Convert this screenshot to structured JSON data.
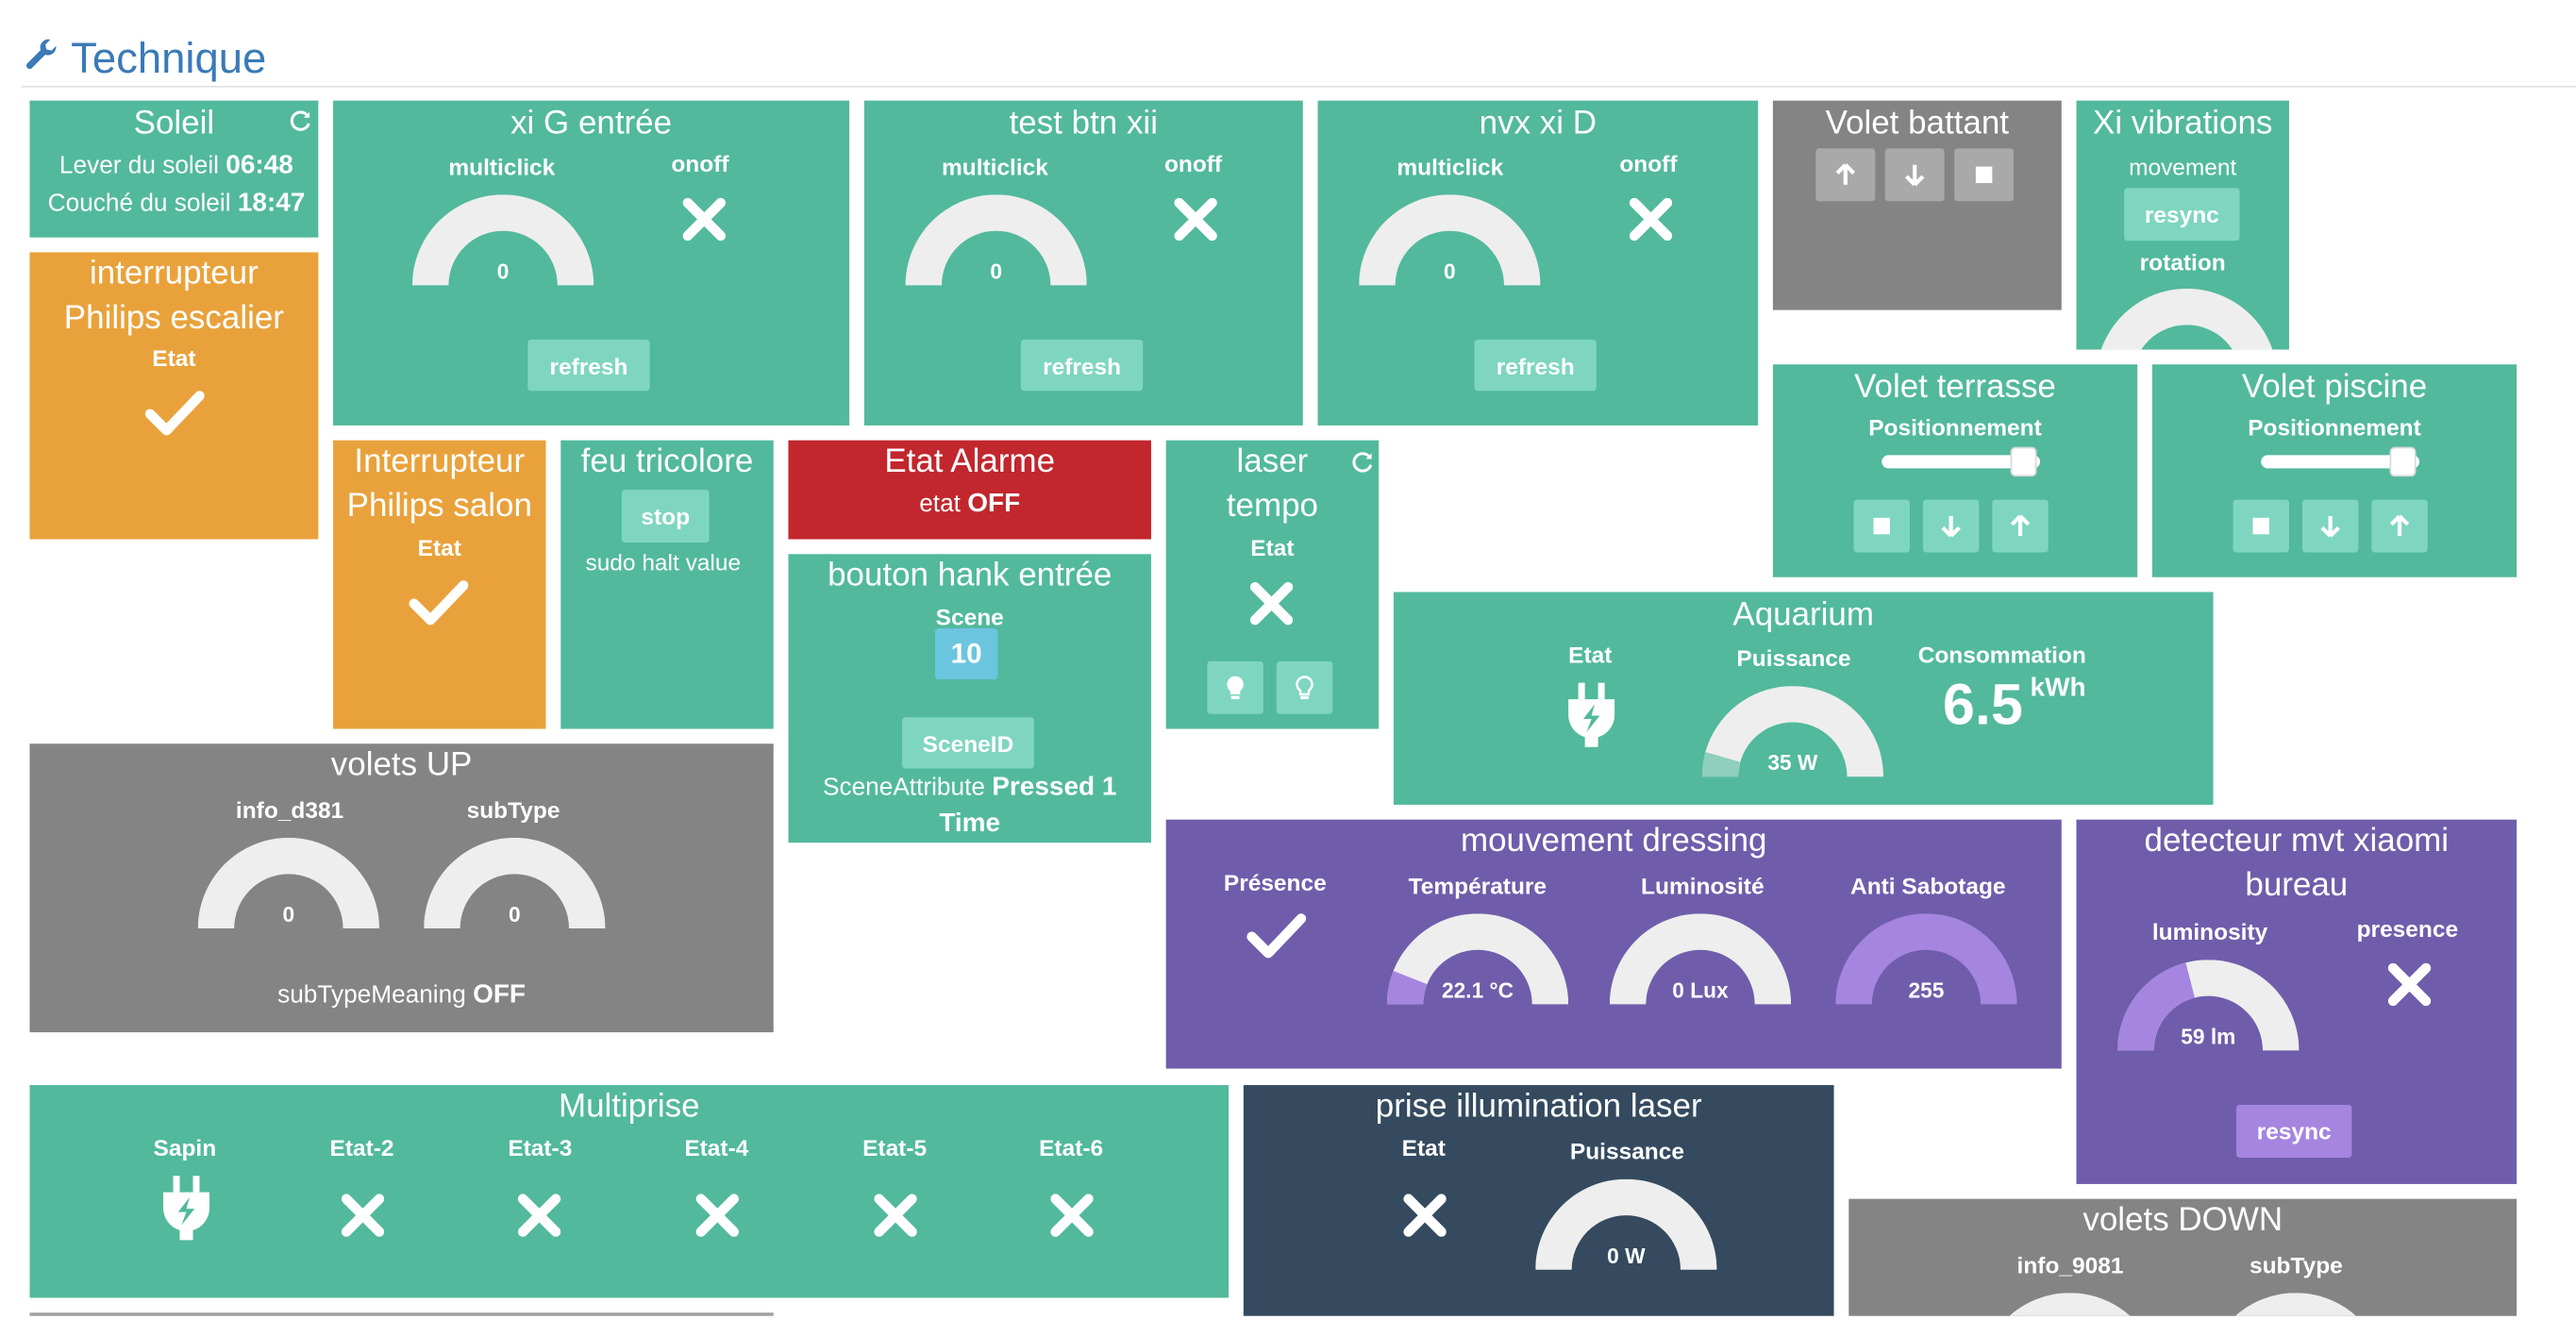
{
  "header": {
    "title": "Technique",
    "icon": "wrench-icon"
  },
  "colors": {
    "green": "#52b99c",
    "grey": "#848484",
    "orange": "#e9a23b",
    "red": "#c1272d",
    "purple": "#6f5dab",
    "navy": "#354a5f",
    "header_blue": "#3a7ab7"
  },
  "soleil": {
    "title": "Soleil",
    "lever_label": "Lever du soleil",
    "lever_value": "06:48",
    "couche_label": "Couché du soleil",
    "couche_value": "18:47"
  },
  "xi_g_entree": {
    "title": "xi G entrée",
    "multiclick_label": "multiclick",
    "multiclick_value": "0",
    "onoff_label": "onoff",
    "refresh_label": "refresh"
  },
  "test_btn_xii": {
    "title": "test btn xii",
    "multiclick_label": "multiclick",
    "multiclick_value": "0",
    "onoff_label": "onoff",
    "refresh_label": "refresh"
  },
  "nvx_xi_d": {
    "title": "nvx xi D",
    "multiclick_label": "multiclick",
    "multiclick_value": "0",
    "onoff_label": "onoff",
    "refresh_label": "refresh"
  },
  "volet_battant": {
    "title": "Volet battant"
  },
  "xi_vibrations": {
    "title": "Xi vibrations",
    "movement_label": "movement",
    "resync_label": "resync",
    "rotation_label": "rotation"
  },
  "interrupteur_escalier": {
    "title_line1": "interrupteur",
    "title_line2": "Philips escalier",
    "etat_label": "Etat"
  },
  "interrupteur_salon": {
    "title_line1": "Interrupteur",
    "title_line2": "Philips salon",
    "etat_label": "Etat"
  },
  "feu_tricolore": {
    "title": "feu tricolore",
    "stop_label": "stop",
    "sub_label": "sudo halt value"
  },
  "etat_alarme": {
    "title": "Etat Alarme",
    "etat_label": "etat",
    "etat_value": "OFF"
  },
  "bouton_hank": {
    "title": "bouton hank entrée",
    "scene_label": "Scene",
    "scene_value": "10",
    "sceneid_label": "SceneID",
    "sceneattr_label": "SceneAttribute",
    "sceneattr_value_line1": "Pressed 1",
    "sceneattr_value_line2": "Time"
  },
  "laser_tempo": {
    "title_line1": "laser",
    "title_line2": "tempo",
    "etat_label": "Etat"
  },
  "volet_terrasse": {
    "title": "Volet terrasse",
    "position_label": "Positionnement",
    "position_value": 0.9
  },
  "volet_piscine": {
    "title": "Volet piscine",
    "position_label": "Positionnement",
    "position_value": 0.9
  },
  "aquarium": {
    "title": "Aquarium",
    "etat_label": "Etat",
    "puissance_label": "Puissance",
    "puissance_value": "35 W",
    "conso_label": "Consommation",
    "conso_value": "6.5",
    "conso_unit": "kWh"
  },
  "volets_up": {
    "title": "volets UP",
    "info_label": "info_d381",
    "info_value": "0",
    "subtype_label": "subType",
    "subtype_value": "0",
    "meaning_label": "subTypeMeaning",
    "meaning_value": "OFF"
  },
  "mouvement_dressing": {
    "title": "mouvement dressing",
    "presence_label": "Présence",
    "temp_label": "Température",
    "temp_value": "22.1 °C",
    "temp_fraction": 0.12,
    "lum_label": "Luminosité",
    "lum_value": "0 Lux",
    "lum_fraction": 0,
    "sabotage_label": "Anti Sabotage",
    "sabotage_value": "255",
    "sabotage_fraction": 1
  },
  "detecteur_xiaomi": {
    "title_line1": "detecteur mvt xiaomi",
    "title_line2": "bureau",
    "lum_label": "luminosity",
    "lum_value": "59 lm",
    "lum_fraction": 0.42,
    "presence_label": "presence",
    "resync_label": "resync"
  },
  "multiprise": {
    "title": "Multiprise",
    "items": [
      "Sapin",
      "Etat-2",
      "Etat-3",
      "Etat-4",
      "Etat-5",
      "Etat-6"
    ]
  },
  "prise_laser": {
    "title": "prise illumination laser",
    "etat_label": "Etat",
    "puissance_label": "Puissance",
    "puissance_value": "0 W"
  },
  "volets_down": {
    "title": "volets DOWN",
    "info_label": "info_9081",
    "subtype_label": "subType"
  }
}
